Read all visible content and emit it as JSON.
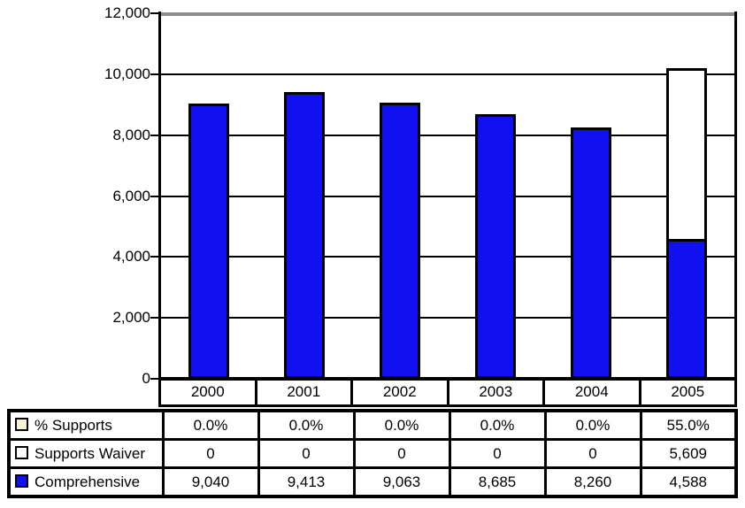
{
  "chart_data": {
    "type": "bar",
    "stacked": true,
    "title": "",
    "xlabel": "",
    "ylabel": "",
    "categories": [
      "2000",
      "2001",
      "2002",
      "2003",
      "2004",
      "2005"
    ],
    "series": [
      {
        "name": "Comprehensive",
        "color": "#1010f0",
        "values": [
          9040,
          9413,
          9063,
          8685,
          8260,
          4588
        ]
      },
      {
        "name": "Supports Waiver",
        "color": "#ffffff",
        "values": [
          0,
          0,
          0,
          0,
          0,
          5609
        ]
      }
    ],
    "percent_series": {
      "name": "% Supports",
      "color": "#f7f3d5",
      "values": [
        "0.0%",
        "0.0%",
        "0.0%",
        "0.0%",
        "0.0%",
        "55.0%"
      ]
    },
    "ylim": [
      0,
      12000
    ],
    "yticks": [
      0,
      2000,
      4000,
      6000,
      8000,
      10000,
      12000
    ],
    "ytick_labels": [
      "0",
      "2,000",
      "4,000",
      "6,000",
      "8,000",
      "10,000",
      "12,000"
    ],
    "grid": "horizontal",
    "legend_position": "left-column-of-data-table"
  },
  "data_table": {
    "rows": [
      {
        "label": "% Supports",
        "marker_color": "#f7f3d5",
        "values": [
          "0.0%",
          "0.0%",
          "0.0%",
          "0.0%",
          "0.0%",
          "55.0%"
        ]
      },
      {
        "label": "Supports Waiver",
        "marker_color": "#ffffff",
        "values": [
          "0",
          "0",
          "0",
          "0",
          "0",
          "5,609"
        ]
      },
      {
        "label": "Comprehensive",
        "marker_color": "#1010f0",
        "values": [
          "9,040",
          "9,413",
          "9,063",
          "8,685",
          "8,260",
          "4,588"
        ]
      }
    ]
  },
  "colors": {
    "background": "#ffffff",
    "bar_fill": "#1010f0",
    "bar_border": "#000000",
    "waiver_fill": "#ffffff",
    "grid_line": "#000000",
    "top_grid_line": "#8c8c8c",
    "axis_line": "#000000"
  }
}
